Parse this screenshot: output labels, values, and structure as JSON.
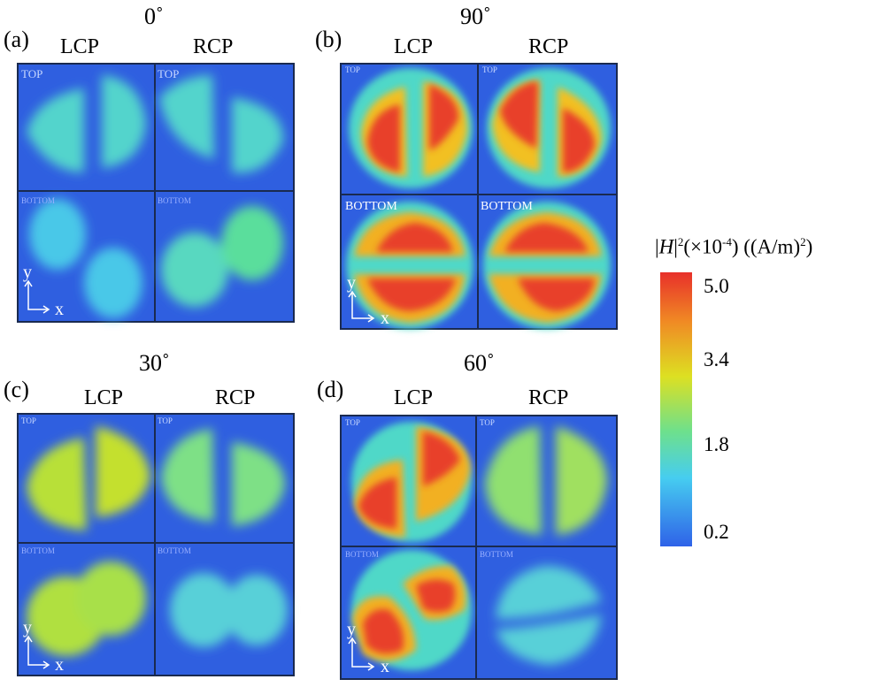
{
  "panels": [
    {
      "id": "a",
      "label": "(a)",
      "angle": "0˚",
      "col1": "LCP",
      "col2": "RCP",
      "top": "TOP",
      "bottom": "BOTTOM"
    },
    {
      "id": "b",
      "label": "(b)",
      "angle": "90˚",
      "col1": "LCP",
      "col2": "RCP",
      "top": "TOP",
      "bottom": "BOTTOM"
    },
    {
      "id": "c",
      "label": "(c)",
      "angle": "30˚",
      "col1": "LCP",
      "col2": "RCP",
      "top": "TOP",
      "bottom": "BOTTOM"
    },
    {
      "id": "d",
      "label": "(d)",
      "angle": "60˚",
      "col1": "LCP",
      "col2": "RCP",
      "top": "TOP",
      "bottom": "BOTTOM"
    }
  ],
  "axes": {
    "y": "y",
    "x": "x"
  },
  "colorbar": {
    "title_pre": "|",
    "title_var": "H",
    "title_post": "|",
    "title_exp": "2",
    "title_mult": "(×10",
    "title_mult_exp": "-4",
    "title_unit": ") ((A/m)",
    "title_unit_exp": "2",
    "title_close": ")",
    "ticks": [
      "5.0",
      "3.4",
      "1.8",
      "0.2"
    ],
    "colors": [
      "#e8302a",
      "#f6a020",
      "#d8e020",
      "#5ee0a0",
      "#48c8f0",
      "#2f6ae8"
    ]
  },
  "colors": {
    "background_field": "#2f5fe0",
    "border": "#1a2a50"
  }
}
